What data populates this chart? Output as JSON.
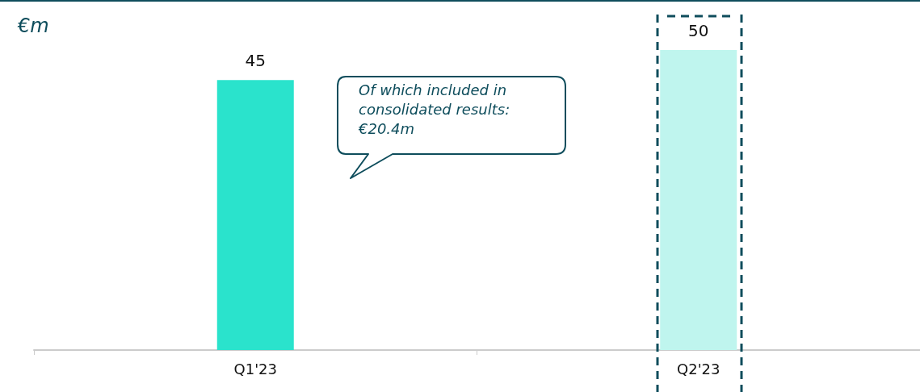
{
  "chart_data": {
    "type": "bar",
    "ylabel": "€m",
    "categories": [
      "Q1'23",
      "Q2'23"
    ],
    "values": [
      45,
      50
    ],
    "colors": [
      "#2ae3cc",
      "#bff5ee"
    ],
    "data_labels": true,
    "annotations": [
      "Of which included in consolidated results: €20.4m"
    ]
  }
}
